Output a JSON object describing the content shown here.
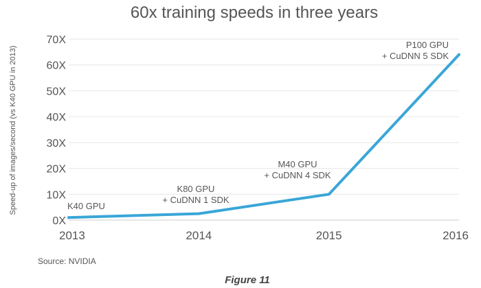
{
  "chart_data": {
    "type": "line",
    "title": "60x training speeds in three years",
    "ylabel": "Speed-up of images/second (vs K40 GPU in 2013)",
    "xlabel": "",
    "x": [
      "2013",
      "2014",
      "2015",
      "2016"
    ],
    "series": [
      {
        "values": [
          1,
          2.5,
          10,
          64
        ]
      }
    ],
    "ylim": [
      0,
      70
    ],
    "yticks": [
      {
        "value": 0,
        "label": "0X"
      },
      {
        "value": 10,
        "label": "10X"
      },
      {
        "value": 20,
        "label": "20X"
      },
      {
        "value": 30,
        "label": "30X"
      },
      {
        "value": 40,
        "label": "40X"
      },
      {
        "value": 50,
        "label": "50X"
      },
      {
        "value": 60,
        "label": "60X"
      },
      {
        "value": 70,
        "label": "70X"
      }
    ],
    "annotations": [
      {
        "lines": [
          "K40 GPU"
        ]
      },
      {
        "lines": [
          "K80 GPU",
          "+ CuDNN 1 SDK"
        ]
      },
      {
        "lines": [
          "M40 GPU",
          "+ CuDNN 4 SDK"
        ]
      },
      {
        "lines": [
          "P100 GPU",
          "+ CuDNN 5 SDK"
        ]
      }
    ],
    "grid": true,
    "line_color": "#3aa6d8",
    "source": "Source: NVIDIA",
    "caption": "Figure 11"
  }
}
